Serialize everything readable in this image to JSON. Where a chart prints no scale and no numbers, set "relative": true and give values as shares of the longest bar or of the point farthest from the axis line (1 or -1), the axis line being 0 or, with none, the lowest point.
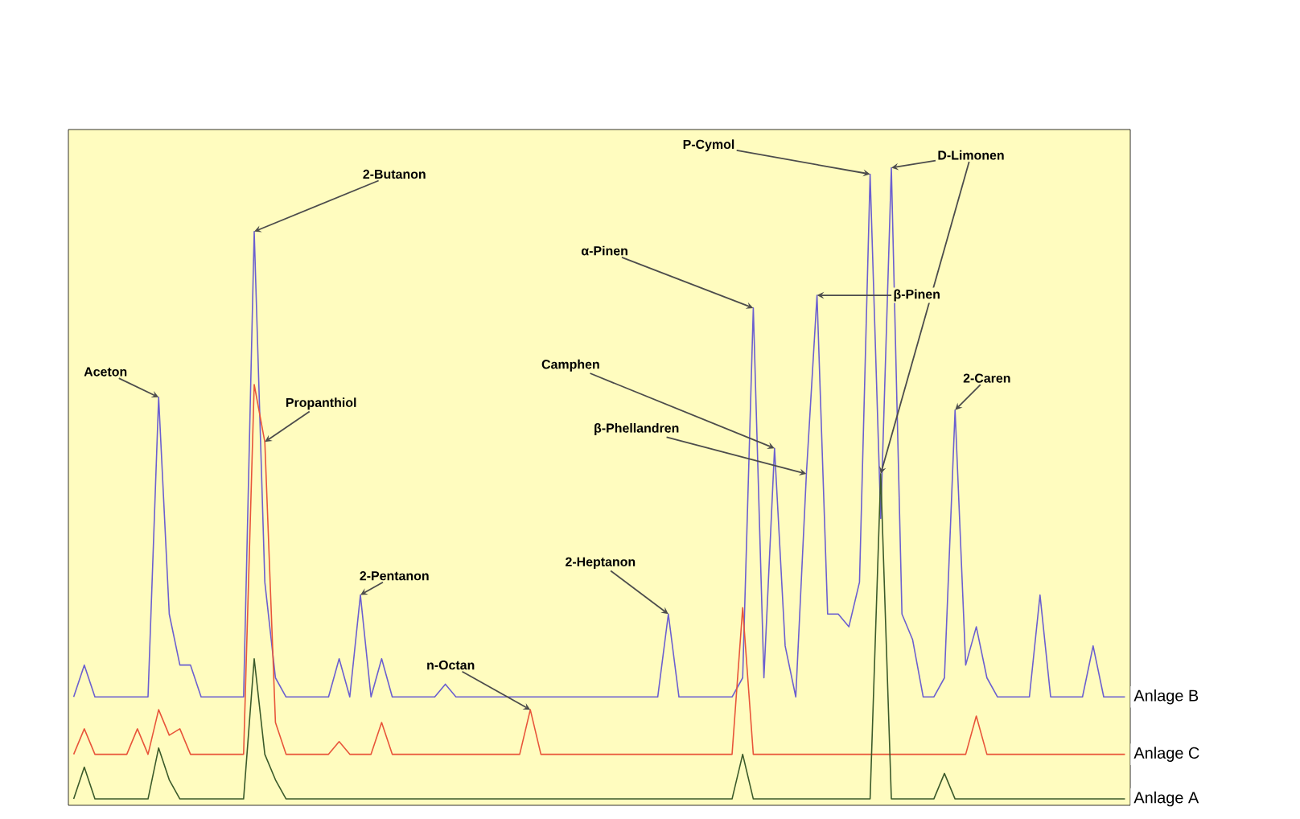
{
  "chart_data": {
    "type": "line",
    "relative": true,
    "marker": "none",
    "line_style": "solid",
    "categories": [
      null,
      null,
      null,
      null,
      null,
      null,
      null,
      null,
      null,
      null,
      null,
      null,
      null,
      null,
      null,
      null,
      null,
      null,
      null,
      null,
      null,
      null,
      null,
      null,
      null,
      null,
      null,
      null,
      null,
      null,
      null,
      null,
      null,
      null,
      null,
      null,
      null,
      null,
      null,
      null,
      null,
      null,
      null,
      null,
      null,
      null,
      null,
      null,
      null,
      null,
      null,
      null,
      null,
      null,
      null,
      null,
      null,
      null,
      null,
      null,
      null,
      null,
      null,
      null,
      null,
      null,
      null,
      null,
      null,
      null,
      null,
      null,
      null,
      null,
      null,
      null,
      null,
      null,
      null,
      null,
      null,
      null,
      null,
      null,
      null,
      null,
      null,
      null,
      null,
      null,
      null,
      null,
      null,
      null,
      null,
      null,
      null,
      null,
      null,
      null
    ],
    "series": [
      {
        "name": "Anlage B",
        "color": "#6b5fd0",
        "values": [
          0.17,
          0.22,
          0.17,
          0.17,
          0.17,
          0.17,
          0.17,
          0.17,
          0.64,
          0.3,
          0.22,
          0.22,
          0.17,
          0.17,
          0.17,
          0.17,
          0.17,
          0.9,
          0.35,
          0.2,
          0.17,
          0.17,
          0.17,
          0.17,
          0.17,
          0.23,
          0.17,
          0.33,
          0.17,
          0.23,
          0.17,
          0.17,
          0.17,
          0.17,
          0.17,
          0.19,
          0.17,
          0.17,
          0.17,
          0.17,
          0.17,
          0.17,
          0.17,
          0.17,
          0.17,
          0.17,
          0.17,
          0.17,
          0.17,
          0.17,
          0.17,
          0.17,
          0.17,
          0.17,
          0.17,
          0.17,
          0.3,
          0.17,
          0.17,
          0.17,
          0.17,
          0.17,
          0.17,
          0.2,
          0.78,
          0.2,
          0.56,
          0.25,
          0.17,
          0.52,
          0.8,
          0.3,
          0.3,
          0.28,
          0.35,
          0.99,
          0.45,
          1.0,
          0.3,
          0.26,
          0.17,
          0.17,
          0.2,
          0.62,
          0.22,
          0.28,
          0.2,
          0.17,
          0.17,
          0.17,
          0.17,
          0.33,
          0.17,
          0.17,
          0.17,
          0.17,
          0.25,
          0.17,
          0.17,
          0.17
        ]
      },
      {
        "name": "Anlage C",
        "color": "#e8553a",
        "values": [
          0.08,
          0.12,
          0.08,
          0.08,
          0.08,
          0.08,
          0.12,
          0.08,
          0.15,
          0.11,
          0.12,
          0.08,
          0.08,
          0.08,
          0.08,
          0.08,
          0.08,
          0.66,
          0.57,
          0.13,
          0.08,
          0.08,
          0.08,
          0.08,
          0.08,
          0.1,
          0.08,
          0.08,
          0.08,
          0.13,
          0.08,
          0.08,
          0.08,
          0.08,
          0.08,
          0.08,
          0.08,
          0.08,
          0.08,
          0.08,
          0.08,
          0.08,
          0.08,
          0.15,
          0.08,
          0.08,
          0.08,
          0.08,
          0.08,
          0.08,
          0.08,
          0.08,
          0.08,
          0.08,
          0.08,
          0.08,
          0.08,
          0.08,
          0.08,
          0.08,
          0.08,
          0.08,
          0.08,
          0.31,
          0.08,
          0.08,
          0.08,
          0.08,
          0.08,
          0.08,
          0.08,
          0.08,
          0.08,
          0.08,
          0.08,
          0.08,
          0.08,
          0.08,
          0.08,
          0.08,
          0.08,
          0.08,
          0.08,
          0.08,
          0.08,
          0.14,
          0.08,
          0.08,
          0.08,
          0.08,
          0.08,
          0.08,
          0.08,
          0.08,
          0.08,
          0.08,
          0.08,
          0.08,
          0.08,
          0.08
        ]
      },
      {
        "name": "Anlage A",
        "color": "#3b5a2a",
        "values": [
          0.01,
          0.06,
          0.01,
          0.01,
          0.01,
          0.01,
          0.01,
          0.01,
          0.09,
          0.04,
          0.01,
          0.01,
          0.01,
          0.01,
          0.01,
          0.01,
          0.01,
          0.23,
          0.08,
          0.04,
          0.01,
          0.01,
          0.01,
          0.01,
          0.01,
          0.01,
          0.01,
          0.01,
          0.01,
          0.01,
          0.01,
          0.01,
          0.01,
          0.01,
          0.01,
          0.01,
          0.01,
          0.01,
          0.01,
          0.01,
          0.01,
          0.01,
          0.01,
          0.01,
          0.01,
          0.01,
          0.01,
          0.01,
          0.01,
          0.01,
          0.01,
          0.01,
          0.01,
          0.01,
          0.01,
          0.01,
          0.01,
          0.01,
          0.01,
          0.01,
          0.01,
          0.01,
          0.01,
          0.08,
          0.01,
          0.01,
          0.01,
          0.01,
          0.01,
          0.01,
          0.01,
          0.01,
          0.01,
          0.01,
          0.01,
          0.01,
          0.52,
          0.01,
          0.01,
          0.01,
          0.01,
          0.01,
          0.05,
          0.01,
          0.01,
          0.01,
          0.01,
          0.01,
          0.01,
          0.01,
          0.01,
          0.01,
          0.01,
          0.01,
          0.01,
          0.01,
          0.01,
          0.01,
          0.01,
          0.01
        ]
      }
    ],
    "annotations": [
      "Aceton",
      "2-Butanon",
      "Propanthiol",
      "2-Pentanon",
      "n-Octan",
      "2-Heptanon",
      "α-Pinen",
      "Camphen",
      "β-Phellandren",
      "P-Cymol",
      "D-Limonen",
      "β-Pinen",
      "2-Caren"
    ]
  }
}
